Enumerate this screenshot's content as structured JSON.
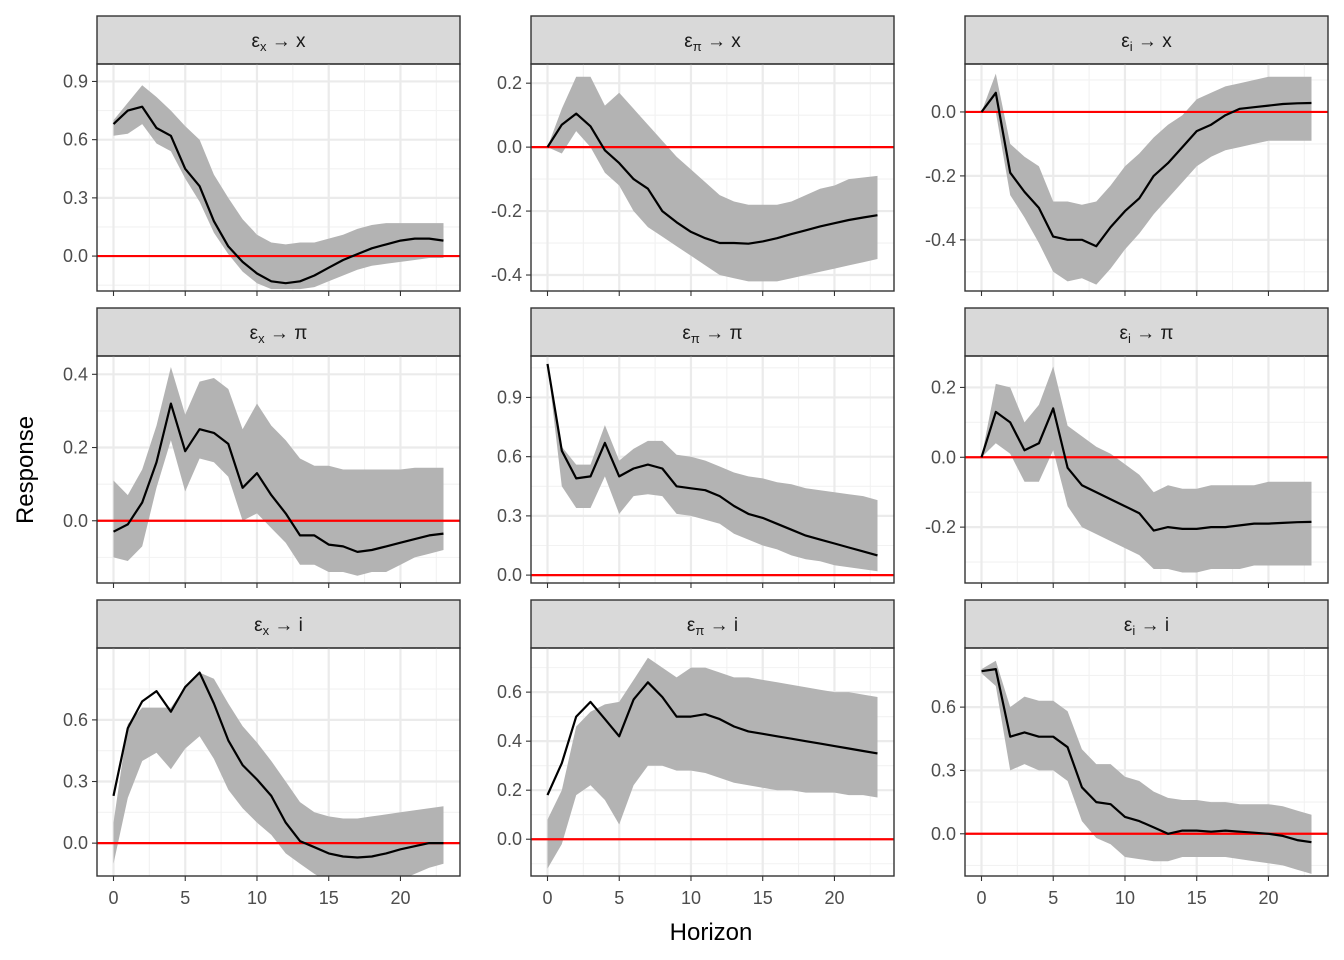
{
  "axis_titles": {
    "x": "Horizon",
    "y": "Response"
  },
  "colors": {
    "band": "#b3b3b3",
    "zero_line": "#ff0000",
    "irf_line": "#000000",
    "strip": "#d9d9d9"
  },
  "chart_data": [
    {
      "type": "line",
      "label_shock": "ε",
      "label_shock_sub": "x",
      "label_arrow": "→",
      "label_response": "x",
      "ylim": [
        -0.18,
        0.99
      ],
      "yticks": [
        0.0,
        0.3,
        0.6,
        0.9
      ],
      "yticks_minor": [
        -0.15,
        0.15,
        0.45,
        0.75
      ],
      "x": [
        0,
        1,
        2,
        3,
        4,
        5,
        6,
        7,
        8,
        9,
        10,
        11,
        12,
        13,
        14,
        15,
        16,
        17,
        18,
        19,
        20,
        21,
        22,
        23
      ],
      "irf": [
        0.68,
        0.75,
        0.77,
        0.66,
        0.62,
        0.45,
        0.36,
        0.18,
        0.05,
        -0.03,
        -0.09,
        -0.13,
        -0.14,
        -0.13,
        -0.1,
        -0.06,
        -0.02,
        0.01,
        0.04,
        0.06,
        0.08,
        0.09,
        0.09,
        0.08
      ],
      "lower": [
        0.62,
        0.63,
        0.68,
        0.58,
        0.54,
        0.4,
        0.28,
        0.12,
        0.01,
        -0.08,
        -0.14,
        -0.17,
        -0.17,
        -0.17,
        -0.16,
        -0.13,
        -0.1,
        -0.07,
        -0.05,
        -0.04,
        -0.03,
        -0.02,
        -0.01,
        -0.01
      ],
      "upper": [
        0.7,
        0.79,
        0.88,
        0.82,
        0.75,
        0.67,
        0.6,
        0.42,
        0.3,
        0.19,
        0.11,
        0.07,
        0.06,
        0.07,
        0.07,
        0.09,
        0.11,
        0.14,
        0.16,
        0.17,
        0.17,
        0.17,
        0.17,
        0.17
      ]
    },
    {
      "type": "line",
      "label_shock": "ε",
      "label_shock_sub": "π",
      "label_arrow": "→",
      "label_response": "x",
      "ylim": [
        -0.45,
        0.26
      ],
      "yticks": [
        -0.4,
        -0.2,
        0.0,
        0.2
      ],
      "yticks_minor": [
        -0.3,
        -0.1,
        0.1
      ],
      "x": [
        0,
        1,
        2,
        3,
        4,
        5,
        6,
        7,
        8,
        9,
        10,
        11,
        12,
        13,
        14,
        15,
        16,
        17,
        18,
        19,
        20,
        21,
        22,
        23
      ],
      "irf": [
        0.0,
        0.07,
        0.105,
        0.065,
        -0.01,
        -0.05,
        -0.1,
        -0.13,
        -0.2,
        -0.235,
        -0.265,
        -0.285,
        -0.3,
        -0.3,
        -0.302,
        -0.295,
        -0.285,
        -0.272,
        -0.26,
        -0.248,
        -0.238,
        -0.228,
        -0.22,
        -0.213
      ],
      "lower": [
        0.0,
        -0.02,
        0.05,
        0.0,
        -0.08,
        -0.12,
        -0.2,
        -0.25,
        -0.28,
        -0.31,
        -0.34,
        -0.37,
        -0.4,
        -0.41,
        -0.42,
        -0.42,
        -0.42,
        -0.41,
        -0.4,
        -0.39,
        -0.38,
        -0.37,
        -0.36,
        -0.35
      ],
      "upper": [
        0.0,
        0.12,
        0.22,
        0.22,
        0.13,
        0.17,
        0.12,
        0.07,
        0.02,
        -0.03,
        -0.07,
        -0.11,
        -0.15,
        -0.17,
        -0.18,
        -0.18,
        -0.18,
        -0.17,
        -0.15,
        -0.13,
        -0.12,
        -0.1,
        -0.095,
        -0.09
      ]
    },
    {
      "type": "line",
      "label_shock": "ε",
      "label_shock_sub": "i",
      "label_arrow": "→",
      "label_response": "x",
      "ylim": [
        -0.56,
        0.15
      ],
      "yticks": [
        -0.4,
        -0.2,
        0.0
      ],
      "yticks_minor": [
        -0.5,
        -0.3,
        -0.1,
        0.1
      ],
      "x": [
        0,
        1,
        2,
        3,
        4,
        5,
        6,
        7,
        8,
        9,
        10,
        11,
        12,
        13,
        14,
        15,
        16,
        17,
        18,
        19,
        20,
        21,
        22,
        23
      ],
      "irf": [
        0.0,
        0.06,
        -0.19,
        -0.25,
        -0.3,
        -0.39,
        -0.4,
        -0.4,
        -0.42,
        -0.36,
        -0.31,
        -0.27,
        -0.2,
        -0.16,
        -0.11,
        -0.06,
        -0.04,
        -0.01,
        0.01,
        0.015,
        0.02,
        0.025,
        0.027,
        0.028
      ],
      "lower": [
        0.0,
        0.0,
        -0.26,
        -0.33,
        -0.41,
        -0.5,
        -0.53,
        -0.52,
        -0.54,
        -0.49,
        -0.43,
        -0.38,
        -0.32,
        -0.27,
        -0.22,
        -0.17,
        -0.14,
        -0.12,
        -0.11,
        -0.1,
        -0.09,
        -0.09,
        -0.09,
        -0.09
      ],
      "upper": [
        0.0,
        0.12,
        -0.1,
        -0.14,
        -0.17,
        -0.28,
        -0.28,
        -0.29,
        -0.28,
        -0.23,
        -0.17,
        -0.13,
        -0.08,
        -0.04,
        -0.01,
        0.04,
        0.06,
        0.08,
        0.09,
        0.1,
        0.11,
        0.11,
        0.11,
        0.11
      ]
    },
    {
      "type": "line",
      "label_shock": "ε",
      "label_shock_sub": "x",
      "label_arrow": "→",
      "label_response": "π",
      "ylim": [
        -0.17,
        0.45
      ],
      "yticks": [
        0.0,
        0.2,
        0.4
      ],
      "yticks_minor": [
        -0.1,
        0.1,
        0.3
      ],
      "x": [
        0,
        1,
        2,
        3,
        4,
        5,
        6,
        7,
        8,
        9,
        10,
        11,
        12,
        13,
        14,
        15,
        16,
        17,
        18,
        19,
        20,
        21,
        22,
        23
      ],
      "irf": [
        -0.03,
        -0.01,
        0.05,
        0.16,
        0.32,
        0.19,
        0.25,
        0.24,
        0.21,
        0.09,
        0.13,
        0.07,
        0.02,
        -0.04,
        -0.04,
        -0.065,
        -0.07,
        -0.085,
        -0.08,
        -0.07,
        -0.06,
        -0.05,
        -0.04,
        -0.035
      ],
      "lower": [
        -0.1,
        -0.11,
        -0.07,
        0.09,
        0.22,
        0.08,
        0.17,
        0.16,
        0.12,
        0.0,
        0.02,
        -0.02,
        -0.06,
        -0.12,
        -0.12,
        -0.14,
        -0.14,
        -0.15,
        -0.14,
        -0.14,
        -0.12,
        -0.1,
        -0.09,
        -0.08
      ],
      "upper": [
        0.11,
        0.07,
        0.14,
        0.26,
        0.42,
        0.29,
        0.38,
        0.39,
        0.36,
        0.25,
        0.32,
        0.26,
        0.22,
        0.17,
        0.15,
        0.15,
        0.14,
        0.14,
        0.14,
        0.14,
        0.14,
        0.145,
        0.145,
        0.145
      ]
    },
    {
      "type": "line",
      "label_shock": "ε",
      "label_shock_sub": "π",
      "label_arrow": "→",
      "label_response": "π",
      "ylim": [
        -0.04,
        1.11
      ],
      "yticks": [
        0.0,
        0.3,
        0.6,
        0.9
      ],
      "yticks_minor": [
        0.15,
        0.45,
        0.75,
        1.05
      ],
      "x": [
        0,
        1,
        2,
        3,
        4,
        5,
        6,
        7,
        8,
        9,
        10,
        11,
        12,
        13,
        14,
        15,
        16,
        17,
        18,
        19,
        20,
        21,
        22,
        23
      ],
      "irf": [
        1.07,
        0.63,
        0.49,
        0.5,
        0.67,
        0.5,
        0.54,
        0.56,
        0.54,
        0.45,
        0.44,
        0.43,
        0.4,
        0.35,
        0.31,
        0.29,
        0.26,
        0.23,
        0.2,
        0.18,
        0.16,
        0.14,
        0.12,
        0.1
      ],
      "lower": [
        1.07,
        0.45,
        0.34,
        0.34,
        0.5,
        0.31,
        0.4,
        0.41,
        0.4,
        0.31,
        0.3,
        0.28,
        0.26,
        0.21,
        0.18,
        0.15,
        0.13,
        0.1,
        0.08,
        0.07,
        0.05,
        0.04,
        0.03,
        0.02
      ],
      "upper": [
        1.07,
        0.65,
        0.56,
        0.56,
        0.76,
        0.58,
        0.64,
        0.68,
        0.68,
        0.61,
        0.6,
        0.58,
        0.55,
        0.52,
        0.5,
        0.49,
        0.47,
        0.46,
        0.44,
        0.43,
        0.42,
        0.41,
        0.4,
        0.38
      ]
    },
    {
      "type": "line",
      "label_shock": "ε",
      "label_shock_sub": "i",
      "label_arrow": "→",
      "label_response": "π",
      "ylim": [
        -0.36,
        0.29
      ],
      "yticks": [
        -0.2,
        0.0,
        0.2
      ],
      "yticks_minor": [
        -0.3,
        -0.1,
        0.1
      ],
      "x": [
        0,
        1,
        2,
        3,
        4,
        5,
        6,
        7,
        8,
        9,
        10,
        11,
        12,
        13,
        14,
        15,
        16,
        17,
        18,
        19,
        20,
        21,
        22,
        23
      ],
      "irf": [
        0.0,
        0.13,
        0.1,
        0.02,
        0.04,
        0.14,
        -0.03,
        -0.08,
        -0.1,
        -0.12,
        -0.14,
        -0.16,
        -0.21,
        -0.2,
        -0.205,
        -0.205,
        -0.2,
        -0.2,
        -0.195,
        -0.19,
        -0.19,
        -0.188,
        -0.186,
        -0.185
      ],
      "lower": [
        0.0,
        0.04,
        0.01,
        -0.07,
        -0.07,
        0.02,
        -0.14,
        -0.2,
        -0.22,
        -0.24,
        -0.26,
        -0.28,
        -0.32,
        -0.32,
        -0.33,
        -0.33,
        -0.32,
        -0.32,
        -0.32,
        -0.31,
        -0.31,
        -0.31,
        -0.31,
        -0.31
      ],
      "upper": [
        0.0,
        0.21,
        0.2,
        0.1,
        0.15,
        0.26,
        0.09,
        0.06,
        0.03,
        0.01,
        -0.02,
        -0.05,
        -0.1,
        -0.08,
        -0.09,
        -0.09,
        -0.08,
        -0.08,
        -0.08,
        -0.08,
        -0.07,
        -0.07,
        -0.07,
        -0.07
      ]
    },
    {
      "type": "line",
      "label_shock": "ε",
      "label_shock_sub": "x",
      "label_arrow": "→",
      "label_response": "i",
      "ylim": [
        -0.16,
        0.95
      ],
      "yticks": [
        0.0,
        0.3,
        0.6
      ],
      "yticks_minor": [
        0.15,
        0.45,
        0.75
      ],
      "x": [
        0,
        1,
        2,
        3,
        4,
        5,
        6,
        7,
        8,
        9,
        10,
        11,
        12,
        13,
        14,
        15,
        16,
        17,
        18,
        19,
        20,
        21,
        22,
        23
      ],
      "irf": [
        0.23,
        0.56,
        0.69,
        0.74,
        0.64,
        0.76,
        0.83,
        0.68,
        0.5,
        0.38,
        0.31,
        0.23,
        0.1,
        0.01,
        -0.02,
        -0.05,
        -0.065,
        -0.07,
        -0.065,
        -0.05,
        -0.03,
        -0.015,
        0.0,
        0.0
      ],
      "lower": [
        -0.1,
        0.22,
        0.4,
        0.44,
        0.36,
        0.46,
        0.52,
        0.41,
        0.26,
        0.17,
        0.1,
        0.04,
        -0.05,
        -0.1,
        -0.15,
        -0.19,
        -0.21,
        -0.22,
        -0.21,
        -0.2,
        -0.18,
        -0.15,
        -0.12,
        -0.1
      ],
      "upper": [
        0.1,
        0.58,
        0.66,
        0.66,
        0.66,
        0.76,
        0.83,
        0.8,
        0.68,
        0.57,
        0.49,
        0.4,
        0.3,
        0.2,
        0.15,
        0.13,
        0.12,
        0.12,
        0.13,
        0.14,
        0.15,
        0.16,
        0.17,
        0.18
      ]
    },
    {
      "type": "line",
      "label_shock": "ε",
      "label_shock_sub": "π",
      "label_arrow": "→",
      "label_response": "i",
      "ylim": [
        -0.15,
        0.78
      ],
      "yticks": [
        0.0,
        0.2,
        0.4,
        0.6
      ],
      "yticks_minor": [
        -0.1,
        0.1,
        0.3,
        0.5,
        0.7
      ],
      "x": [
        0,
        1,
        2,
        3,
        4,
        5,
        6,
        7,
        8,
        9,
        10,
        11,
        12,
        13,
        14,
        15,
        16,
        17,
        18,
        19,
        20,
        21,
        22,
        23
      ],
      "irf": [
        0.18,
        0.31,
        0.5,
        0.56,
        0.49,
        0.42,
        0.57,
        0.64,
        0.58,
        0.5,
        0.5,
        0.51,
        0.49,
        0.46,
        0.44,
        0.43,
        0.42,
        0.41,
        0.4,
        0.39,
        0.38,
        0.37,
        0.36,
        0.35
      ],
      "lower": [
        -0.12,
        -0.02,
        0.18,
        0.22,
        0.16,
        0.06,
        0.22,
        0.3,
        0.3,
        0.28,
        0.28,
        0.27,
        0.25,
        0.23,
        0.22,
        0.21,
        0.2,
        0.2,
        0.19,
        0.19,
        0.19,
        0.18,
        0.18,
        0.17
      ],
      "upper": [
        0.08,
        0.2,
        0.46,
        0.52,
        0.55,
        0.56,
        0.65,
        0.74,
        0.7,
        0.66,
        0.7,
        0.7,
        0.68,
        0.66,
        0.66,
        0.65,
        0.64,
        0.63,
        0.62,
        0.61,
        0.6,
        0.6,
        0.59,
        0.58
      ]
    },
    {
      "type": "line",
      "label_shock": "ε",
      "label_shock_sub": "i",
      "label_arrow": "→",
      "label_response": "i",
      "ylim": [
        -0.2,
        0.88
      ],
      "yticks": [
        0.0,
        0.3,
        0.6
      ],
      "yticks_minor": [
        -0.15,
        0.15,
        0.45,
        0.75
      ],
      "x": [
        0,
        1,
        2,
        3,
        4,
        5,
        6,
        7,
        8,
        9,
        10,
        11,
        12,
        13,
        14,
        15,
        16,
        17,
        18,
        19,
        20,
        21,
        22,
        23
      ],
      "irf": [
        0.77,
        0.78,
        0.46,
        0.48,
        0.46,
        0.46,
        0.41,
        0.22,
        0.15,
        0.14,
        0.08,
        0.06,
        0.03,
        0.0,
        0.015,
        0.015,
        0.01,
        0.015,
        0.01,
        0.005,
        0.0,
        -0.01,
        -0.03,
        -0.04
      ],
      "lower": [
        0.76,
        0.7,
        0.3,
        0.33,
        0.3,
        0.3,
        0.25,
        0.06,
        -0.02,
        -0.05,
        -0.11,
        -0.12,
        -0.13,
        -0.13,
        -0.11,
        -0.11,
        -0.11,
        -0.11,
        -0.12,
        -0.13,
        -0.14,
        -0.15,
        -0.17,
        -0.19
      ],
      "upper": [
        0.78,
        0.82,
        0.6,
        0.65,
        0.63,
        0.63,
        0.58,
        0.4,
        0.33,
        0.33,
        0.27,
        0.25,
        0.2,
        0.17,
        0.16,
        0.16,
        0.15,
        0.15,
        0.14,
        0.14,
        0.14,
        0.13,
        0.11,
        0.09
      ]
    }
  ],
  "x_axis": {
    "xlim": [
      -1.15,
      24.15
    ],
    "xticks": [
      0,
      5,
      10,
      15,
      20
    ],
    "xticks_minor": [
      2.5,
      7.5,
      12.5,
      17.5,
      22.5
    ]
  }
}
